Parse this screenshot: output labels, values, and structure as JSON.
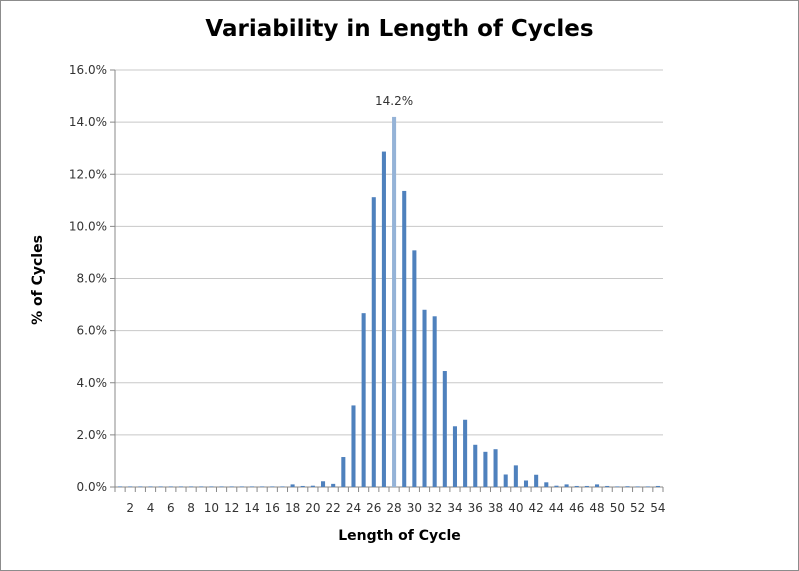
{
  "chart_data": {
    "type": "bar",
    "title": "Variability in Length of Cycles",
    "xlabel": "Length of Cycle",
    "ylabel": "% of Cycles",
    "ylim": [
      0,
      16
    ],
    "y_ticks": [
      "0.0%",
      "2.0%",
      "4.0%",
      "6.0%",
      "8.0%",
      "10.0%",
      "12.0%",
      "14.0%",
      "16.0%"
    ],
    "grid": true,
    "categories": [
      1,
      2,
      3,
      4,
      5,
      6,
      7,
      8,
      9,
      10,
      11,
      12,
      13,
      14,
      15,
      16,
      17,
      18,
      19,
      20,
      21,
      22,
      23,
      24,
      25,
      26,
      27,
      28,
      29,
      30,
      31,
      32,
      33,
      34,
      35,
      36,
      37,
      38,
      39,
      40,
      41,
      42,
      43,
      44,
      45,
      46,
      47,
      48,
      49,
      50,
      51,
      52,
      53,
      54
    ],
    "x_tick_labels": [
      "2",
      "4",
      "6",
      "8",
      "10",
      "12",
      "14",
      "16",
      "18",
      "20",
      "22",
      "24",
      "26",
      "28",
      "30",
      "32",
      "34",
      "36",
      "38",
      "40",
      "42",
      "44",
      "46",
      "48",
      "50",
      "52",
      "54"
    ],
    "values": [
      0.02,
      0.02,
      0.02,
      0.02,
      0.02,
      0.02,
      0.02,
      0.02,
      0.02,
      0.02,
      0.02,
      0.02,
      0.02,
      0.02,
      0.02,
      0.02,
      0.02,
      0.1,
      0.04,
      0.05,
      0.22,
      0.12,
      1.15,
      3.13,
      6.67,
      11.12,
      12.87,
      14.2,
      11.36,
      9.08,
      6.8,
      6.55,
      4.45,
      2.33,
      2.58,
      1.62,
      1.35,
      1.45,
      0.48,
      0.83,
      0.25,
      0.47,
      0.18,
      0.05,
      0.1,
      0.04,
      0.04,
      0.1,
      0.04,
      0.02,
      0.03,
      0.02,
      0.02,
      0.04
    ],
    "highlight_index": 27,
    "highlight_label": "14.2%",
    "bar_color": "#4f81bd",
    "highlight_color": "#95b3d7",
    "grid_color": "#c8c8c8"
  }
}
